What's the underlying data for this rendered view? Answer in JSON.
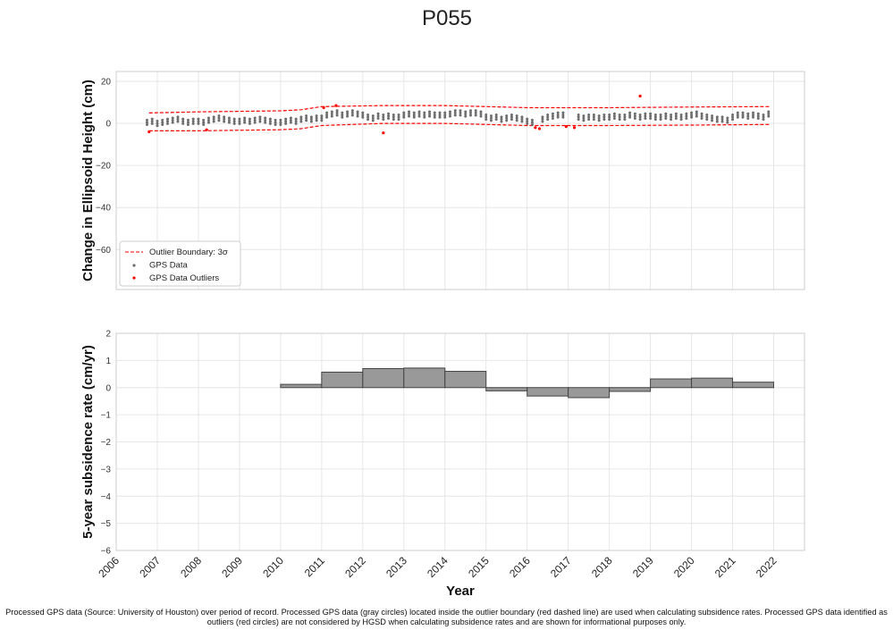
{
  "title": "P055",
  "footnote": "Processed GPS data (Source: University of Houston) over period of record. Processed GPS data (gray circles) located inside the outlier boundary (red dashed line) are used when calculating subsidence rates. Processed GPS data identified as outliers (red circles) are not considered by HGSD when calculating subsidence rates and are shown for informational purposes only.",
  "colors": {
    "gps": "#6e6e6e",
    "outlier": "#ff0000",
    "boundary": "#ff0000",
    "bar": "#999999",
    "bar_edge": "#444444",
    "grid": "#e6e6e6"
  },
  "chart_data": [
    {
      "type": "scatter",
      "ylabel": "Change in Ellipsoid Height (cm)",
      "ylim": [
        -79,
        24.7
      ],
      "xlim": [
        2006,
        2022.75
      ],
      "yticks": [
        20,
        0,
        -20,
        -40,
        -60
      ],
      "grid": true,
      "legend": {
        "placement": "bottom-left",
        "entries": [
          "Outlier Boundary: 3σ",
          "GPS Data",
          "GPS Data Outliers"
        ]
      },
      "boundary_upper": [
        [
          2006.8,
          5
        ],
        [
          2008,
          5.5
        ],
        [
          2010,
          6
        ],
        [
          2010.5,
          6.5
        ],
        [
          2011,
          8
        ],
        [
          2012.5,
          8.5
        ],
        [
          2014,
          8.5
        ],
        [
          2015,
          8
        ],
        [
          2016,
          7.5
        ],
        [
          2018,
          7.5
        ],
        [
          2020,
          7.8
        ],
        [
          2021.9,
          8
        ]
      ],
      "boundary_lower": [
        [
          2006.8,
          -3.5
        ],
        [
          2008,
          -3.5
        ],
        [
          2010,
          -3
        ],
        [
          2010.5,
          -2.5
        ],
        [
          2011,
          -1
        ],
        [
          2012.5,
          0
        ],
        [
          2014,
          0
        ],
        [
          2015,
          -0.5
        ],
        [
          2016,
          -1
        ],
        [
          2018,
          -1
        ],
        [
          2020,
          -0.8
        ],
        [
          2021.9,
          -0.5
        ]
      ],
      "gps_data": [
        [
          2006.75,
          0.5
        ],
        [
          2006.875,
          1
        ],
        [
          2007,
          0
        ],
        [
          2007.125,
          0.5
        ],
        [
          2007.25,
          1
        ],
        [
          2007.375,
          1.5
        ],
        [
          2007.5,
          2
        ],
        [
          2007.625,
          1
        ],
        [
          2007.75,
          0.5
        ],
        [
          2007.875,
          1
        ],
        [
          2008,
          1
        ],
        [
          2008.125,
          0.5
        ],
        [
          2008.25,
          1.5
        ],
        [
          2008.375,
          2
        ],
        [
          2008.5,
          2.5
        ],
        [
          2008.625,
          2
        ],
        [
          2008.75,
          1.5
        ],
        [
          2008.875,
          1
        ],
        [
          2009,
          1
        ],
        [
          2009.125,
          1.5
        ],
        [
          2009.25,
          1
        ],
        [
          2009.375,
          1.5
        ],
        [
          2009.5,
          2
        ],
        [
          2009.625,
          1.5
        ],
        [
          2009.75,
          1
        ],
        [
          2009.875,
          0.5
        ],
        [
          2010,
          0.5
        ],
        [
          2010.125,
          1
        ],
        [
          2010.25,
          1.5
        ],
        [
          2010.375,
          1
        ],
        [
          2010.5,
          2
        ],
        [
          2010.625,
          2.5
        ],
        [
          2010.75,
          2
        ],
        [
          2010.875,
          2.5
        ],
        [
          2011,
          2.5
        ],
        [
          2011.125,
          4
        ],
        [
          2011.25,
          4.5
        ],
        [
          2011.375,
          5
        ],
        [
          2011.5,
          4
        ],
        [
          2011.625,
          4.5
        ],
        [
          2011.75,
          5
        ],
        [
          2011.875,
          4.5
        ],
        [
          2012,
          4
        ],
        [
          2012.125,
          3
        ],
        [
          2012.25,
          2.5
        ],
        [
          2012.375,
          3.5
        ],
        [
          2012.5,
          3
        ],
        [
          2012.625,
          3.5
        ],
        [
          2012.75,
          3
        ],
        [
          2012.875,
          3
        ],
        [
          2013,
          4
        ],
        [
          2013.125,
          4.5
        ],
        [
          2013.25,
          4
        ],
        [
          2013.375,
          4.5
        ],
        [
          2013.5,
          4
        ],
        [
          2013.625,
          4.5
        ],
        [
          2013.75,
          4
        ],
        [
          2013.875,
          4
        ],
        [
          2014,
          4
        ],
        [
          2014.125,
          4.5
        ],
        [
          2014.25,
          5
        ],
        [
          2014.375,
          5
        ],
        [
          2014.5,
          4.5
        ],
        [
          2014.625,
          5
        ],
        [
          2014.75,
          5
        ],
        [
          2014.875,
          4.5
        ],
        [
          2015,
          3
        ],
        [
          2015.125,
          2.5
        ],
        [
          2015.25,
          3
        ],
        [
          2015.375,
          2
        ],
        [
          2015.5,
          2.5
        ],
        [
          2015.625,
          3
        ],
        [
          2015.75,
          2.5
        ],
        [
          2015.875,
          2
        ],
        [
          2016,
          1
        ],
        [
          2016.125,
          0.5
        ],
        [
          2016.375,
          2
        ],
        [
          2016.5,
          3
        ],
        [
          2016.625,
          3.5
        ],
        [
          2016.75,
          4
        ],
        [
          2016.875,
          4
        ],
        [
          2017.25,
          3
        ],
        [
          2017.375,
          2.5
        ],
        [
          2017.5,
          3
        ],
        [
          2017.625,
          3
        ],
        [
          2017.75,
          2.5
        ],
        [
          2017.875,
          3
        ],
        [
          2018,
          3
        ],
        [
          2018.125,
          3.5
        ],
        [
          2018.25,
          3
        ],
        [
          2018.375,
          3
        ],
        [
          2018.5,
          4
        ],
        [
          2018.625,
          3.5
        ],
        [
          2018.75,
          3
        ],
        [
          2018.875,
          3.5
        ],
        [
          2019,
          3.5
        ],
        [
          2019.125,
          3
        ],
        [
          2019.25,
          3
        ],
        [
          2019.375,
          3.5
        ],
        [
          2019.5,
          3
        ],
        [
          2019.625,
          3.5
        ],
        [
          2019.75,
          3
        ],
        [
          2019.875,
          3.5
        ],
        [
          2020,
          4
        ],
        [
          2020.125,
          4.5
        ],
        [
          2020.25,
          3.5
        ],
        [
          2020.375,
          3
        ],
        [
          2020.5,
          2.5
        ],
        [
          2020.625,
          2
        ],
        [
          2020.75,
          2
        ],
        [
          2020.875,
          1.5
        ],
        [
          2021,
          3
        ],
        [
          2021.125,
          4
        ],
        [
          2021.25,
          4
        ],
        [
          2021.375,
          3.5
        ],
        [
          2021.5,
          4
        ],
        [
          2021.625,
          3.5
        ],
        [
          2021.75,
          3
        ],
        [
          2021.875,
          4.5
        ]
      ],
      "outliers": [
        [
          2006.8,
          -4
        ],
        [
          2008.2,
          -3
        ],
        [
          2011.05,
          7.5
        ],
        [
          2011.35,
          8.5
        ],
        [
          2012.5,
          -4.5
        ],
        [
          2016.2,
          -2
        ],
        [
          2016.3,
          -2.5
        ],
        [
          2016.95,
          -1.5
        ],
        [
          2017.15,
          -2
        ],
        [
          2018.75,
          13
        ]
      ]
    },
    {
      "type": "bar",
      "xlabel": "Year",
      "ylabel": "5-year subsidence rate (cm/yr)",
      "ylim": [
        -6,
        2
      ],
      "xlim": [
        2006,
        2022.75
      ],
      "yticks": [
        2,
        1,
        0,
        -1,
        -2,
        -3,
        -4,
        -5,
        -6
      ],
      "xticks": [
        "2006",
        "2007",
        "2008",
        "2009",
        "2010",
        "2011",
        "2012",
        "2013",
        "2014",
        "2015",
        "2016",
        "2017",
        "2018",
        "2019",
        "2020",
        "2021",
        "2022"
      ],
      "grid": true,
      "categories": [
        2010,
        2011,
        2012,
        2013,
        2014,
        2015,
        2016,
        2017,
        2018,
        2019,
        2020,
        2021
      ],
      "values": [
        0.12,
        0.57,
        0.7,
        0.72,
        0.6,
        -0.12,
        -0.31,
        -0.37,
        -0.14,
        0.32,
        0.35,
        0.2
      ]
    }
  ]
}
